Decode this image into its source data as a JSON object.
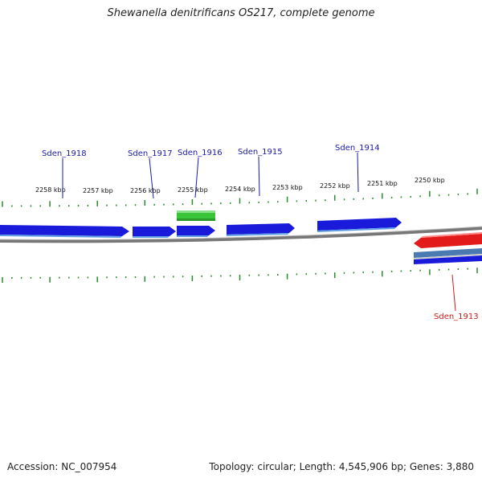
{
  "title": "Shewanella denitrificans OS217, complete genome",
  "footer": {
    "accession": "Accession: NC_007954",
    "summary": "Topology: circular; Length: 4,545,906 bp; Genes: 3,880"
  },
  "scale_labels": [
    "2258 kbp",
    "2257 kbp",
    "2256 kbp",
    "2255 kbp",
    "2254 kbp",
    "2253 kbp",
    "2252 kbp",
    "2251 kbp",
    "2250 kbp"
  ],
  "genes": [
    {
      "name": "Sden_1918",
      "strand": "forward",
      "color": "#1a1adb"
    },
    {
      "name": "Sden_1917",
      "strand": "forward",
      "color": "#1a1adb"
    },
    {
      "name": "Sden_1916",
      "strand": "forward",
      "color": "#1a1adb"
    },
    {
      "name": "Sden_1915",
      "strand": "forward",
      "color": "#1a1adb"
    },
    {
      "name": "Sden_1914",
      "strand": "forward",
      "color": "#1a1adb"
    },
    {
      "name": "Sden_1913",
      "strand": "reverse",
      "color": "#e31a1a"
    }
  ],
  "colors": {
    "forward_label": "#1a1aa8",
    "reverse_label": "#d41a1a",
    "tick": "#2a8a2a",
    "rna_feature": "#3ac43a",
    "backbone": "#888888"
  }
}
